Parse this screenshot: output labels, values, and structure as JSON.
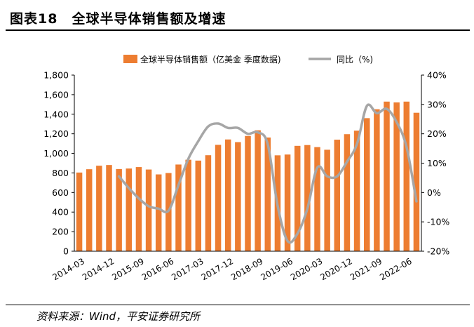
{
  "figure": {
    "title": "图表18　全球半导体销售额及增速",
    "source": "资料来源：Wind，平安证券研究所"
  },
  "chart_data": {
    "type": "bar+line",
    "legend": {
      "bar_label": "全球半导体销售额（亿美金 季度数据)",
      "line_label": "同比（%)",
      "placement": "top-center"
    },
    "colors": {
      "bar": "#ED7D31",
      "line": "#A6A6A6"
    },
    "quarters": [
      "2014-03",
      "2014-06",
      "2014-09",
      "2014-12",
      "2015-03",
      "2015-06",
      "2015-09",
      "2015-12",
      "2016-03",
      "2016-06",
      "2016-09",
      "2016-12",
      "2017-03",
      "2017-06",
      "2017-09",
      "2017-12",
      "2018-03",
      "2018-06",
      "2018-09",
      "2018-12",
      "2019-03",
      "2019-06",
      "2019-09",
      "2019-12",
      "2020-03",
      "2020-06",
      "2020-09",
      "2020-12",
      "2021-03",
      "2021-06",
      "2021-09",
      "2021-12",
      "2022-03",
      "2022-06",
      "2022-09"
    ],
    "x_tick_labels": [
      "2014-03",
      "2014-12",
      "2015-09",
      "2016-06",
      "2017-03",
      "2017-12",
      "2018-09",
      "2019-06",
      "2020-03",
      "2020-12",
      "2021-09",
      "2022-06"
    ],
    "sales": [
      804,
      838,
      874,
      881,
      840,
      845,
      860,
      835,
      785,
      799,
      886,
      935,
      926,
      981,
      1087,
      1142,
      1115,
      1178,
      1236,
      1162,
      980,
      988,
      1077,
      1085,
      1064,
      1037,
      1140,
      1196,
      1232,
      1360,
      1451,
      1529,
      1521,
      1529,
      1415
    ],
    "yoy": [
      null,
      null,
      null,
      null,
      5.5,
      1.5,
      -2.0,
      -4.7,
      -5.5,
      -6.2,
      2.5,
      11.5,
      17.5,
      22.5,
      23.5,
      22.0,
      22.0,
      20.0,
      20.5,
      16.5,
      -4.5,
      -16.5,
      -14.0,
      -5.5,
      8.5,
      5.5,
      5.5,
      10.5,
      16.5,
      29.5,
      27.0,
      28.5,
      24.0,
      15.5,
      -3.0
    ],
    "y_left": {
      "min": 0,
      "max": 1800,
      "ticks": [
        "0",
        "200",
        "400",
        "600",
        "800",
        "1,000",
        "1,200",
        "1,400",
        "1,600",
        "1,800"
      ]
    },
    "y_right": {
      "min": -20,
      "max": 40,
      "ticks": [
        "-20%",
        "-10%",
        "0%",
        "10%",
        "20%",
        "30%",
        "40%"
      ]
    }
  }
}
